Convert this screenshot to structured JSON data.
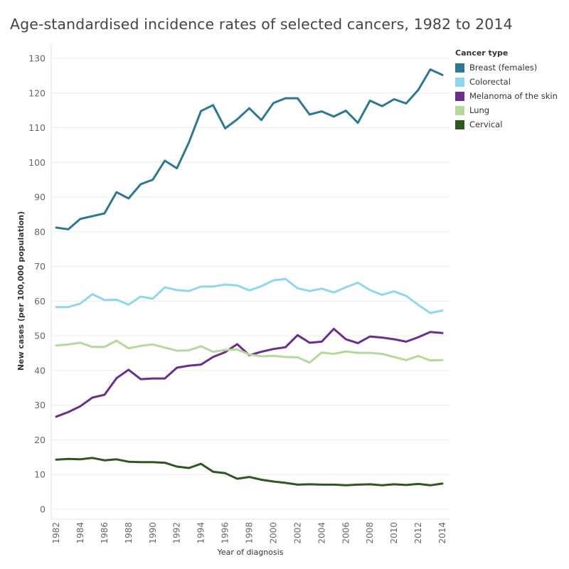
{
  "page": {
    "title": "Age-standardised incidence rates of selected cancers, 1982 to 2014"
  },
  "legend": {
    "title": "Cancer type"
  },
  "chart_data": {
    "type": "line",
    "title": "Age-standardised incidence rates of selected cancers, 1982 to 2014",
    "xlabel": "Year of diagnosis",
    "ylabel": "New cases (per 100,000 population)",
    "xlim": [
      1982,
      2014
    ],
    "ylim": [
      0,
      130
    ],
    "y_ticks": [
      0,
      10,
      20,
      30,
      40,
      50,
      60,
      70,
      80,
      90,
      100,
      110,
      120,
      130
    ],
    "x_ticks": [
      1982,
      1984,
      1986,
      1988,
      1990,
      1992,
      1994,
      1996,
      1998,
      2000,
      2002,
      2004,
      2006,
      2008,
      2010,
      2012,
      2014
    ],
    "grid": true,
    "legend_position": "top-right",
    "x": [
      1982,
      1983,
      1984,
      1985,
      1986,
      1987,
      1988,
      1989,
      1990,
      1991,
      1992,
      1993,
      1994,
      1995,
      1996,
      1997,
      1998,
      1999,
      2000,
      2001,
      2002,
      2003,
      2004,
      2005,
      2006,
      2007,
      2008,
      2009,
      2010,
      2011,
      2012,
      2013,
      2014
    ],
    "series": [
      {
        "name": "Breast (females)",
        "color": "#2e7891",
        "values": [
          81.2,
          80.7,
          83.7,
          84.5,
          85.3,
          91.4,
          89.6,
          93.7,
          95.0,
          100.5,
          98.3,
          105.8,
          114.8,
          116.5,
          109.8,
          112.4,
          115.6,
          112.2,
          117.1,
          118.5,
          118.5,
          113.8,
          114.7,
          113.2,
          114.9,
          111.4,
          117.8,
          116.2,
          118.2,
          117.0,
          120.9,
          126.8,
          125.2
        ]
      },
      {
        "name": "Colorectal",
        "color": "#90d7ee",
        "values": [
          58.3,
          58.3,
          59.3,
          62.0,
          60.3,
          60.4,
          59.0,
          61.3,
          60.7,
          64.0,
          63.2,
          62.9,
          64.2,
          64.2,
          64.8,
          64.5,
          63.1,
          64.3,
          66.0,
          66.4,
          63.7,
          62.9,
          63.6,
          62.5,
          64.0,
          65.3,
          63.2,
          61.8,
          62.8,
          61.5,
          58.9,
          56.6,
          57.3
        ]
      },
      {
        "name": "Melanoma of the skin",
        "color": "#6a2f8c",
        "values": [
          26.7,
          28.0,
          29.7,
          32.2,
          33.0,
          37.8,
          40.2,
          37.5,
          37.7,
          37.7,
          40.8,
          41.4,
          41.7,
          43.9,
          45.3,
          47.6,
          44.4,
          45.4,
          46.2,
          46.7,
          50.2,
          48.0,
          48.3,
          52.0,
          49.0,
          47.9,
          49.8,
          49.5,
          49.0,
          48.3,
          49.6,
          51.1,
          50.8
        ]
      },
      {
        "name": "Lung",
        "color": "#b4d99a",
        "values": [
          47.2,
          47.5,
          48.0,
          46.8,
          46.8,
          48.6,
          46.4,
          47.1,
          47.5,
          46.6,
          45.7,
          45.8,
          47.0,
          45.4,
          45.9,
          46.1,
          44.6,
          44.1,
          44.2,
          43.9,
          43.8,
          42.3,
          45.2,
          44.8,
          45.5,
          45.1,
          45.1,
          44.8,
          43.9,
          43.0,
          44.2,
          42.9,
          43.0
        ]
      },
      {
        "name": "Cervical",
        "color": "#2e5722",
        "values": [
          14.3,
          14.5,
          14.4,
          14.8,
          14.1,
          14.4,
          13.7,
          13.6,
          13.6,
          13.4,
          12.3,
          11.9,
          13.1,
          10.8,
          10.4,
          8.8,
          9.3,
          8.5,
          8.0,
          7.6,
          7.1,
          7.2,
          7.1,
          7.1,
          6.9,
          7.1,
          7.2,
          6.9,
          7.2,
          7.0,
          7.3,
          6.9,
          7.4
        ]
      }
    ]
  }
}
